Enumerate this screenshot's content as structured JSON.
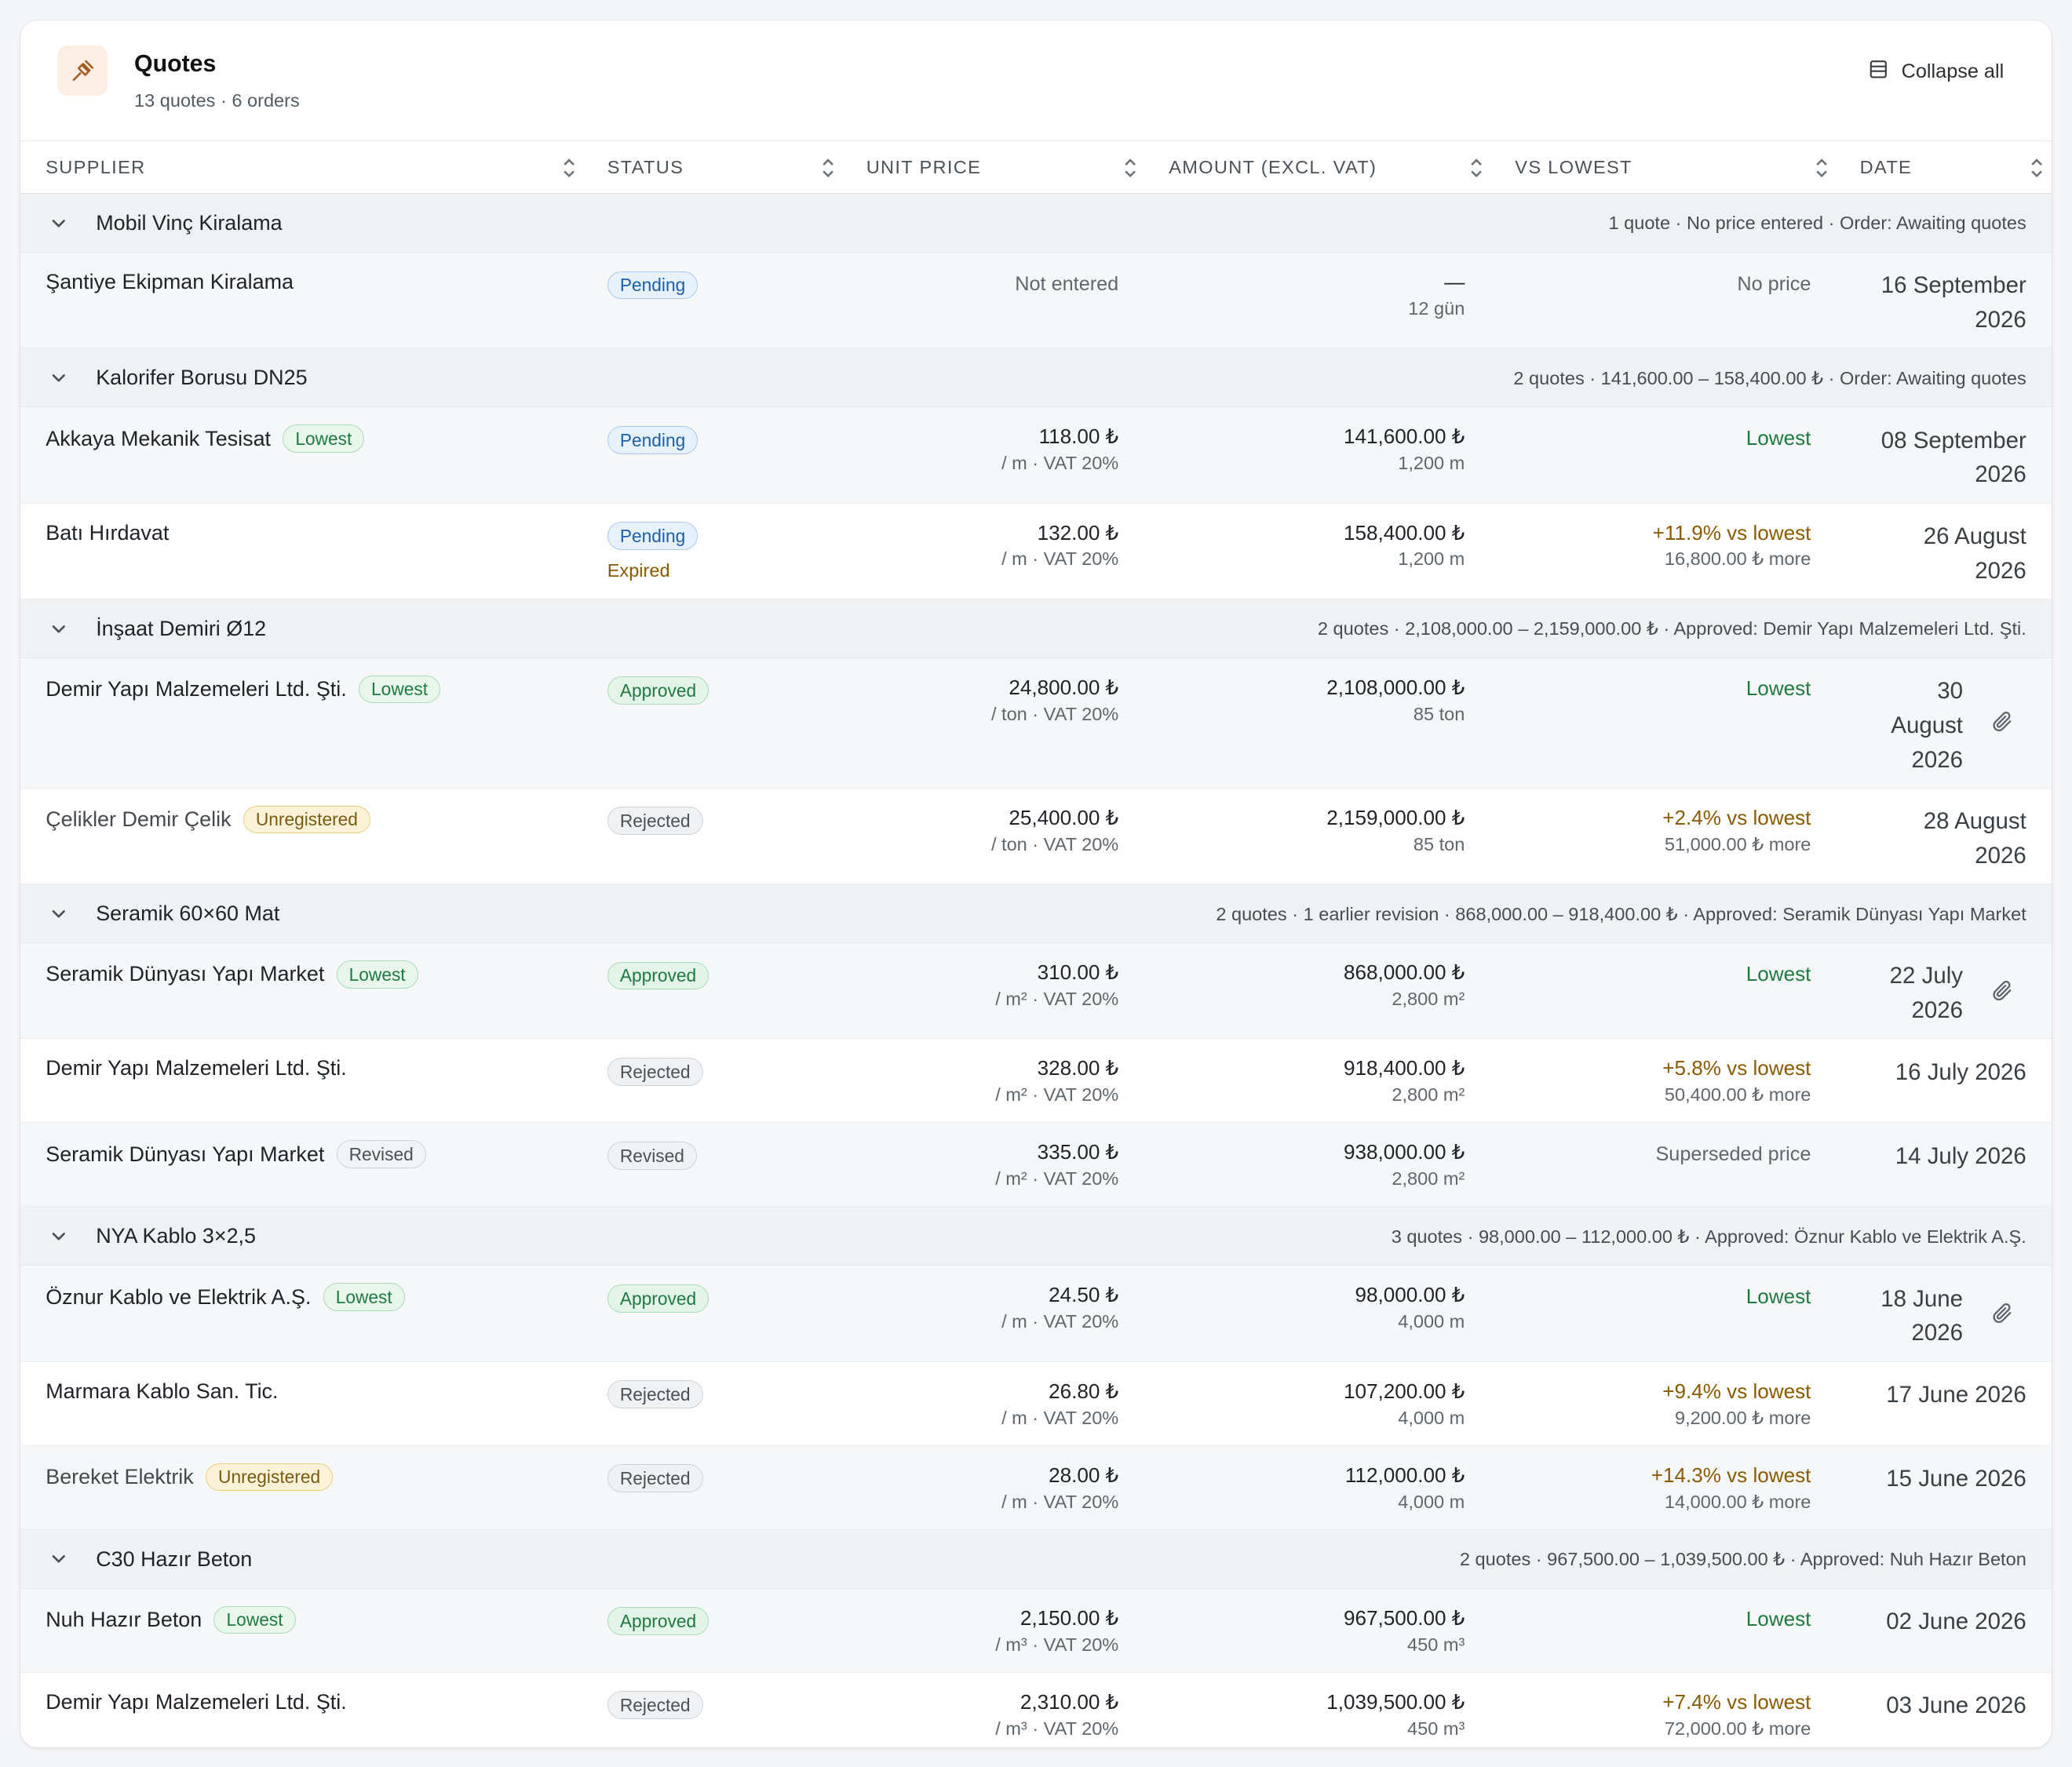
{
  "header": {
    "title": "Quotes",
    "subtitle": "13 quotes · 6 orders",
    "collapse_label": "Collapse all"
  },
  "columns": {
    "supplier": "SUPPLIER",
    "status": "STATUS",
    "unit_price": "UNIT PRICE",
    "amount": "AMOUNT (EXCL. VAT)",
    "vs_lowest": "VS LOWEST",
    "date": "DATE"
  },
  "groups": [
    {
      "name": "Mobil Vinç Kiralama",
      "summary": "1 quote · No price entered · Order: Awaiting quotes",
      "rows": [
        {
          "supplier": "Şantiye Ekipman Kiralama",
          "status": "Pending",
          "unit": "Not entered",
          "amount": "—",
          "amount_sub": "12 gün",
          "vs": "No price",
          "date_1": "16 September",
          "date_2": "2026"
        }
      ]
    },
    {
      "name": "Kalorifer Borusu DN25",
      "summary": "2 quotes · 141,600.00 – 158,400.00 ₺ · Order: Awaiting quotes",
      "rows": [
        {
          "supplier": "Akkaya Mekanik Tesisat",
          "badge": "Lowest",
          "status": "Pending",
          "unit": "118.00 ₺",
          "unit_sub": "/ m · VAT 20%",
          "amount": "141,600.00 ₺",
          "amount_sub": "1,200 m",
          "vs": "Lowest",
          "date_1": "08 September",
          "date_2": "2026"
        },
        {
          "supplier": "Batı Hırdavat",
          "status": "Pending",
          "status_note": "Expired",
          "unit": "132.00 ₺",
          "unit_sub": "/ m · VAT 20%",
          "amount": "158,400.00 ₺",
          "amount_sub": "1,200 m",
          "vs": "+11.9% vs lowest",
          "vs_sub": "16,800.00 ₺ more",
          "date_1": "26 August",
          "date_2": "2026"
        }
      ]
    },
    {
      "name": "İnşaat Demiri Ø12",
      "summary": "2 quotes · 2,108,000.00 – 2,159,000.00 ₺ · Approved: Demir Yapı Malzemeleri Ltd. Şti.",
      "rows": [
        {
          "supplier": "Demir Yapı Malzemeleri Ltd. Şti.",
          "badge": "Lowest",
          "status": "Approved",
          "unit": "24,800.00 ₺",
          "unit_sub": "/ ton · VAT 20%",
          "amount": "2,108,000.00 ₺",
          "amount_sub": "85 ton",
          "vs": "Lowest",
          "date_1": "30",
          "date_2": "August",
          "date_3": "2026",
          "attachment": "paperclip-icon"
        },
        {
          "supplier": "Çelikler Demir Çelik",
          "badge": "Unregistered",
          "status": "Rejected",
          "unit": "25,400.00 ₺",
          "unit_sub": "/ ton · VAT 20%",
          "amount": "2,159,000.00 ₺",
          "amount_sub": "85 ton",
          "vs": "+2.4% vs lowest",
          "vs_sub": "51,000.00 ₺ more",
          "date_1": "28 August",
          "date_2": "2026"
        }
      ]
    },
    {
      "name": "Seramik 60×60 Mat",
      "summary": "2 quotes · 1 earlier revision · 868,000.00 – 918,400.00 ₺ · Approved: Seramik Dünyası Yapı Market",
      "rows": [
        {
          "supplier": "Seramik Dünyası Yapı Market",
          "badge": "Lowest",
          "status": "Approved",
          "unit": "310.00 ₺",
          "unit_sub": "/ m² · VAT 20%",
          "amount": "868,000.00 ₺",
          "amount_sub": "2,800 m²",
          "vs": "Lowest",
          "date_1": "22 July",
          "date_2": "2026",
          "attachment": "paperclip-icon"
        },
        {
          "supplier": "Demir Yapı Malzemeleri Ltd. Şti.",
          "status": "Rejected",
          "unit": "328.00 ₺",
          "unit_sub": "/ m² · VAT 20%",
          "amount": "918,400.00 ₺",
          "amount_sub": "2,800 m²",
          "vs": "+5.8% vs lowest",
          "vs_sub": "50,400.00 ₺ more",
          "date_1": "16 July 2026"
        },
        {
          "supplier": "Seramik Dünyası Yapı Market",
          "badge": "Revised",
          "status": "Revised",
          "unit": "335.00 ₺",
          "unit_sub": "/ m² · VAT 20%",
          "amount": "938,000.00 ₺",
          "amount_sub": "2,800 m²",
          "vs": "Superseded price",
          "date_1": "14 July 2026"
        }
      ]
    },
    {
      "name": "NYA Kablo 3×2,5",
      "summary": "3 quotes · 98,000.00 – 112,000.00 ₺ · Approved: Öznur Kablo ve Elektrik A.Ş.",
      "rows": [
        {
          "supplier": "Öznur Kablo ve Elektrik A.Ş.",
          "badge": "Lowest",
          "status": "Approved",
          "unit": "24.50 ₺",
          "unit_sub": "/ m · VAT 20%",
          "amount": "98,000.00 ₺",
          "amount_sub": "4,000 m",
          "vs": "Lowest",
          "date_1": "18 June",
          "date_2": "2026",
          "attachment": "paperclip-icon"
        },
        {
          "supplier": "Marmara Kablo San. Tic.",
          "status": "Rejected",
          "unit": "26.80 ₺",
          "unit_sub": "/ m · VAT 20%",
          "amount": "107,200.00 ₺",
          "amount_sub": "4,000 m",
          "vs": "+9.4% vs lowest",
          "vs_sub": "9,200.00 ₺ more",
          "date_1": "17 June 2026"
        },
        {
          "supplier": "Bereket Elektrik",
          "badge": "Unregistered",
          "status": "Rejected",
          "unit": "28.00 ₺",
          "unit_sub": "/ m · VAT 20%",
          "amount": "112,000.00 ₺",
          "amount_sub": "4,000 m",
          "vs": "+14.3% vs lowest",
          "vs_sub": "14,000.00 ₺ more",
          "date_1": "15 June 2026"
        }
      ]
    },
    {
      "name": "C30 Hazır Beton",
      "summary": "2 quotes · 967,500.00 – 1,039,500.00 ₺ · Approved: Nuh Hazır Beton",
      "rows": [
        {
          "supplier": "Nuh Hazır Beton",
          "badge": "Lowest",
          "status": "Approved",
          "unit": "2,150.00 ₺",
          "unit_sub": "/ m³ · VAT 20%",
          "amount": "967,500.00 ₺",
          "amount_sub": "450 m³",
          "vs": "Lowest",
          "date_1": "02 June 2026"
        },
        {
          "supplier": "Demir Yapı Malzemeleri Ltd. Şti.",
          "status": "Rejected",
          "unit": "2,310.00 ₺",
          "unit_sub": "/ m³ · VAT 20%",
          "amount": "1,039,500.00 ₺",
          "amount_sub": "450 m³",
          "vs": "+7.4% vs lowest",
          "vs_sub": "72,000.00 ₺ more",
          "date_1": "03 June 2026"
        }
      ]
    }
  ]
}
